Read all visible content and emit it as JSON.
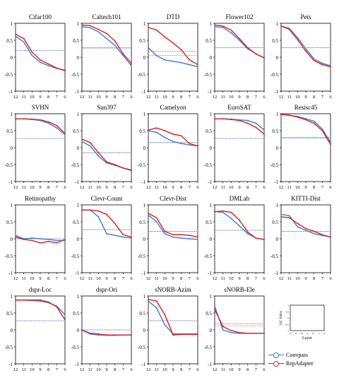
{
  "colors": {
    "convpass": "#3a7bd5",
    "repadapter": "#d62020"
  },
  "legend": {
    "convpass_label": "Convpass",
    "repadapter_label": "RepAdapter"
  },
  "inset": {
    "ylabel": "S/C Index",
    "xlabel": "Layer",
    "yticks": [
      "1",
      "0.5",
      "0",
      "-0.5",
      "-1"
    ],
    "xticks": [
      "12",
      "11",
      "10",
      "9",
      "8",
      "7",
      "6"
    ]
  },
  "chart_data": [
    {
      "type": "line",
      "title": "Cifar100",
      "categories": [
        "12",
        "11",
        "10",
        "9",
        "8",
        "7",
        "6"
      ],
      "ylim": [
        -1,
        1
      ],
      "yticks": [
        "1",
        "0.5",
        "0",
        "-0.5",
        "-1"
      ],
      "series": [
        {
          "name": "Convpass",
          "values": [
            0.62,
            0.45,
            0.05,
            -0.15,
            -0.25,
            -0.33,
            -0.38
          ]
        },
        {
          "name": "RepAdapter",
          "values": [
            0.68,
            0.55,
            0.15,
            -0.08,
            -0.2,
            -0.32,
            -0.4
          ]
        }
      ],
      "reference": {
        "Convpass": 0.2,
        "RepAdapter": 0.2
      }
    },
    {
      "type": "line",
      "title": "Caltech101",
      "categories": [
        "12",
        "11",
        "10",
        "9",
        "8",
        "7",
        "6"
      ],
      "ylim": [
        -1,
        1
      ],
      "yticks": [
        "1",
        "0.5",
        "0",
        "-0.5",
        "-1"
      ],
      "series": [
        {
          "name": "Convpass",
          "values": [
            0.9,
            0.87,
            0.75,
            0.55,
            0.35,
            0.05,
            -0.25
          ]
        },
        {
          "name": "RepAdapter",
          "values": [
            0.95,
            0.93,
            0.82,
            0.7,
            0.48,
            0.1,
            -0.18
          ]
        }
      ],
      "reference": {
        "Convpass": 0.27,
        "RepAdapter": 0.28
      }
    },
    {
      "type": "line",
      "title": "DTD",
      "categories": [
        "12",
        "11",
        "10",
        "9",
        "8",
        "7",
        "6"
      ],
      "ylim": [
        -1,
        1
      ],
      "yticks": [
        "1",
        "0.5",
        "0",
        "-0.5",
        "-1"
      ],
      "series": [
        {
          "name": "Convpass",
          "values": [
            0.28,
            0.05,
            -0.08,
            -0.12,
            -0.16,
            -0.22,
            -0.28
          ]
        },
        {
          "name": "RepAdapter",
          "values": [
            0.88,
            0.8,
            0.6,
            0.42,
            0.22,
            -0.08,
            -0.22
          ]
        }
      ],
      "reference": {
        "Convpass": 0.05,
        "RepAdapter": 0.18
      }
    },
    {
      "type": "line",
      "title": "Flower102",
      "categories": [
        "12",
        "11",
        "10",
        "9",
        "8",
        "7",
        "6"
      ],
      "ylim": [
        -1,
        1
      ],
      "yticks": [
        "1",
        "0.5",
        "0",
        "-0.5",
        "-1"
      ],
      "series": [
        {
          "name": "Convpass",
          "values": [
            0.9,
            0.88,
            0.72,
            0.5,
            0.25,
            0.1,
            -0.02
          ]
        },
        {
          "name": "RepAdapter",
          "values": [
            0.95,
            0.92,
            0.8,
            0.55,
            0.28,
            0.1,
            -0.02
          ]
        }
      ],
      "reference": {
        "Convpass": 0.28,
        "RepAdapter": 0.28
      }
    },
    {
      "type": "line",
      "title": "Pets",
      "categories": [
        "12",
        "11",
        "10",
        "9",
        "8",
        "7",
        "6"
      ],
      "ylim": [
        -1,
        1
      ],
      "yticks": [
        "1",
        "0.5",
        "0",
        "-0.5",
        "-1"
      ],
      "series": [
        {
          "name": "Convpass",
          "values": [
            0.92,
            0.85,
            0.58,
            0.25,
            -0.05,
            -0.18,
            -0.25
          ]
        },
        {
          "name": "RepAdapter",
          "values": [
            0.92,
            0.82,
            0.52,
            0.18,
            -0.1,
            -0.22,
            -0.28
          ]
        }
      ],
      "reference": {
        "Convpass": 0.28,
        "RepAdapter": 0.28
      }
    },
    {
      "type": "line",
      "title": "SVHN",
      "categories": [
        "12",
        "11",
        "10",
        "9",
        "8",
        "7",
        "6"
      ],
      "ylim": [
        -1,
        1
      ],
      "yticks": [
        "1",
        "0.5",
        "0",
        "-0.5",
        "-1"
      ],
      "series": [
        {
          "name": "Convpass",
          "values": [
            0.85,
            0.85,
            0.83,
            0.8,
            0.72,
            0.58,
            0.38
          ]
        },
        {
          "name": "RepAdapter",
          "values": [
            0.85,
            0.85,
            0.84,
            0.82,
            0.76,
            0.65,
            0.42
          ]
        }
      ],
      "reference": {
        "Convpass": 0.27,
        "RepAdapter": 0.27
      }
    },
    {
      "type": "line",
      "title": "Sun397",
      "categories": [
        "12",
        "11",
        "10",
        "9",
        "8",
        "7",
        "6"
      ],
      "ylim": [
        -1,
        1
      ],
      "yticks": [
        "1",
        "0.5",
        "0",
        "-0.5",
        "-1"
      ],
      "series": [
        {
          "name": "Convpass",
          "values": [
            0.18,
            0.05,
            -0.25,
            -0.45,
            -0.52,
            -0.6,
            -0.68
          ]
        },
        {
          "name": "RepAdapter",
          "values": [
            0.25,
            0.15,
            -0.15,
            -0.42,
            -0.5,
            -0.6,
            -0.66
          ]
        }
      ],
      "reference": {
        "Convpass": -0.15,
        "RepAdapter": -0.15
      }
    },
    {
      "type": "line",
      "title": "Camelyon",
      "categories": [
        "12",
        "11",
        "10",
        "9",
        "8",
        "7",
        "6"
      ],
      "ylim": [
        -1,
        1
      ],
      "yticks": [
        "1",
        "0.5",
        "0",
        "-0.5",
        "-1"
      ],
      "series": [
        {
          "name": "Convpass",
          "values": [
            0.5,
            0.45,
            0.3,
            0.18,
            0.12,
            0.08,
            0.05
          ]
        },
        {
          "name": "RepAdapter",
          "values": [
            0.52,
            0.58,
            0.5,
            0.4,
            0.35,
            0.12,
            0.05
          ]
        }
      ],
      "reference": {
        "Convpass": 0.15,
        "RepAdapter": 0.15
      }
    },
    {
      "type": "line",
      "title": "EuroSAT",
      "categories": [
        "12",
        "11",
        "10",
        "9",
        "8",
        "7",
        "6"
      ],
      "ylim": [
        -1,
        1
      ],
      "yticks": [
        "1",
        "0.5",
        "0",
        "-0.5",
        "-1"
      ],
      "series": [
        {
          "name": "Convpass",
          "values": [
            0.85,
            0.85,
            0.84,
            0.82,
            0.8,
            0.72,
            0.52
          ]
        },
        {
          "name": "RepAdapter",
          "values": [
            0.85,
            0.85,
            0.83,
            0.8,
            0.72,
            0.6,
            0.4
          ]
        }
      ],
      "reference": {
        "Convpass": 0.27,
        "RepAdapter": 0.27
      }
    },
    {
      "type": "line",
      "title": "Resisc45",
      "categories": [
        "12",
        "11",
        "10",
        "9",
        "8",
        "7",
        "6"
      ],
      "ylim": [
        -1,
        1
      ],
      "yticks": [
        "1",
        "0.5",
        "0",
        "-0.5",
        "-1"
      ],
      "series": [
        {
          "name": "Convpass",
          "values": [
            0.98,
            0.95,
            0.92,
            0.85,
            0.78,
            0.55,
            0.15
          ]
        },
        {
          "name": "RepAdapter",
          "values": [
            0.98,
            0.96,
            0.9,
            0.82,
            0.72,
            0.5,
            0.1
          ]
        }
      ],
      "reference": {
        "Convpass": 0.28,
        "RepAdapter": 0.3
      }
    },
    {
      "type": "line",
      "title": "Retinopathy",
      "categories": [
        "12",
        "11",
        "10",
        "9",
        "8",
        "7",
        "6"
      ],
      "ylim": [
        -1,
        1
      ],
      "yticks": [
        "1",
        "0.5",
        "0",
        "-0.5",
        "-1"
      ],
      "series": [
        {
          "name": "Convpass",
          "values": [
            0.1,
            0,
            0.02,
            0,
            -0.02,
            -0.05,
            -0.05
          ]
        },
        {
          "name": "RepAdapter",
          "values": [
            0.05,
            -0.02,
            -0.05,
            -0.12,
            -0.08,
            -0.12,
            -0.02
          ]
        }
      ],
      "reference": {
        "Convpass": 0,
        "RepAdapter": 0
      }
    },
    {
      "type": "line",
      "title": "Clevr-Count",
      "categories": [
        "12",
        "11",
        "10",
        "9",
        "8",
        "7",
        "6"
      ],
      "ylim": [
        -1,
        1
      ],
      "yticks": [
        "1",
        "0.5",
        "0",
        "-0.5",
        "-1"
      ],
      "series": [
        {
          "name": "Convpass",
          "values": [
            0.85,
            0.85,
            0.65,
            0.15,
            0.1,
            0.05,
            0.02
          ]
        },
        {
          "name": "RepAdapter",
          "values": [
            0.85,
            0.85,
            0.82,
            0.72,
            0.45,
            0.12,
            0.05
          ]
        }
      ],
      "reference": {
        "Convpass": 0.27,
        "RepAdapter": 0.27
      }
    },
    {
      "type": "line",
      "title": "Clevr-Dist",
      "categories": [
        "12",
        "11",
        "10",
        "9",
        "8",
        "7",
        "6"
      ],
      "ylim": [
        -1,
        1
      ],
      "yticks": [
        "1",
        "0.5",
        "0",
        "-0.5",
        "-1"
      ],
      "series": [
        {
          "name": "Convpass",
          "values": [
            0.7,
            0.5,
            0.15,
            0.05,
            0.02,
            0,
            -0.02
          ]
        },
        {
          "name": "RepAdapter",
          "values": [
            0.75,
            0.62,
            0.22,
            0.12,
            0.12,
            0.1,
            0.05
          ]
        }
      ],
      "reference": {
        "Convpass": 0.22,
        "RepAdapter": 0.22
      }
    },
    {
      "type": "line",
      "title": "DMLab",
      "categories": [
        "12",
        "11",
        "10",
        "9",
        "8",
        "7",
        "6"
      ],
      "ylim": [
        -1,
        1
      ],
      "yticks": [
        "1",
        "0.5",
        "0",
        "-0.5",
        "-1"
      ],
      "series": [
        {
          "name": "Convpass",
          "values": [
            0.8,
            0.78,
            0.6,
            0.38,
            0.15,
            0.02,
            -0.02
          ]
        },
        {
          "name": "RepAdapter",
          "values": [
            0.8,
            0.82,
            0.78,
            0.55,
            0.2,
            0.02,
            -0.02
          ]
        }
      ],
      "reference": {
        "Convpass": 0.25,
        "RepAdapter": 0.25
      }
    },
    {
      "type": "line",
      "title": "KITTI-Dist",
      "categories": [
        "12",
        "11",
        "10",
        "9",
        "8",
        "7",
        "6"
      ],
      "ylim": [
        -1,
        1
      ],
      "yticks": [
        "1",
        "0.5",
        "0",
        "-0.5",
        "-1"
      ],
      "series": [
        {
          "name": "Convpass",
          "values": [
            0.72,
            0.68,
            0.35,
            0.25,
            0.15,
            0.1,
            0.05
          ]
        },
        {
          "name": "RepAdapter",
          "values": [
            0.65,
            0.62,
            0.45,
            0.3,
            0.22,
            0.12,
            0.05
          ]
        }
      ],
      "reference": {
        "Convpass": 0.22,
        "RepAdapter": 0.22
      }
    },
    {
      "type": "line",
      "title": "dspr-Loc",
      "categories": [
        "12",
        "11",
        "10",
        "9",
        "8",
        "7",
        "6"
      ],
      "ylim": [
        -1,
        1
      ],
      "yticks": [
        "1",
        "0.5",
        "0",
        "-0.5",
        "-1"
      ],
      "series": [
        {
          "name": "Convpass",
          "values": [
            0.88,
            0.88,
            0.87,
            0.85,
            0.8,
            0.7,
            0.45
          ]
        },
        {
          "name": "RepAdapter",
          "values": [
            0.88,
            0.88,
            0.88,
            0.88,
            0.82,
            0.68,
            0.3
          ]
        }
      ],
      "reference": {
        "Convpass": 0.27,
        "RepAdapter": 0.27
      }
    },
    {
      "type": "line",
      "title": "dspr-Ori",
      "categories": [
        "12",
        "11",
        "10",
        "9",
        "8",
        "7",
        "6"
      ],
      "ylim": [
        -1,
        1
      ],
      "yticks": [
        "1",
        "0.5",
        "0",
        "-0.5",
        "-1"
      ],
      "series": [
        {
          "name": "Convpass",
          "values": [
            0,
            -0.12,
            -0.15,
            -0.16,
            -0.16,
            -0.15,
            -0.15
          ]
        },
        {
          "name": "RepAdapter",
          "values": [
            0,
            -0.1,
            -0.12,
            -0.15,
            -0.15,
            -0.15,
            -0.15
          ]
        }
      ],
      "reference": {
        "Convpass": 0,
        "RepAdapter": 0
      }
    },
    {
      "type": "line",
      "title": "sNORB-Azim",
      "categories": [
        "12",
        "11",
        "10",
        "9",
        "8",
        "7",
        "6"
      ],
      "ylim": [
        -1,
        1
      ],
      "yticks": [
        "1",
        "0.5",
        "0",
        "-0.5",
        "-1"
      ],
      "series": [
        {
          "name": "Convpass",
          "values": [
            0.85,
            0.65,
            0.15,
            -0.12,
            -0.12,
            -0.12,
            -0.12
          ]
        },
        {
          "name": "RepAdapter",
          "values": [
            0.9,
            0.85,
            0.45,
            -0.15,
            -0.13,
            -0.13,
            -0.13
          ]
        }
      ],
      "reference": {
        "Convpass": 0.27,
        "RepAdapter": 0.27
      }
    },
    {
      "type": "line",
      "title": "sNORB-Ele",
      "categories": [
        "12",
        "11",
        "10",
        "9",
        "8",
        "7",
        "6"
      ],
      "ylim": [
        -1,
        1
      ],
      "yticks": [
        "1",
        "0.5",
        "0",
        "-0.5",
        "-1"
      ],
      "series": [
        {
          "name": "Convpass",
          "values": [
            0.7,
            0,
            -0.08,
            -0.1,
            -0.1,
            -0.1,
            -0.1
          ]
        },
        {
          "name": "RepAdapter",
          "values": [
            0.6,
            0.1,
            -0.02,
            -0.08,
            -0.1,
            -0.1,
            -0.1
          ]
        }
      ],
      "reference": {
        "Convpass": 0.12,
        "RepAdapter": 0.18
      }
    }
  ]
}
